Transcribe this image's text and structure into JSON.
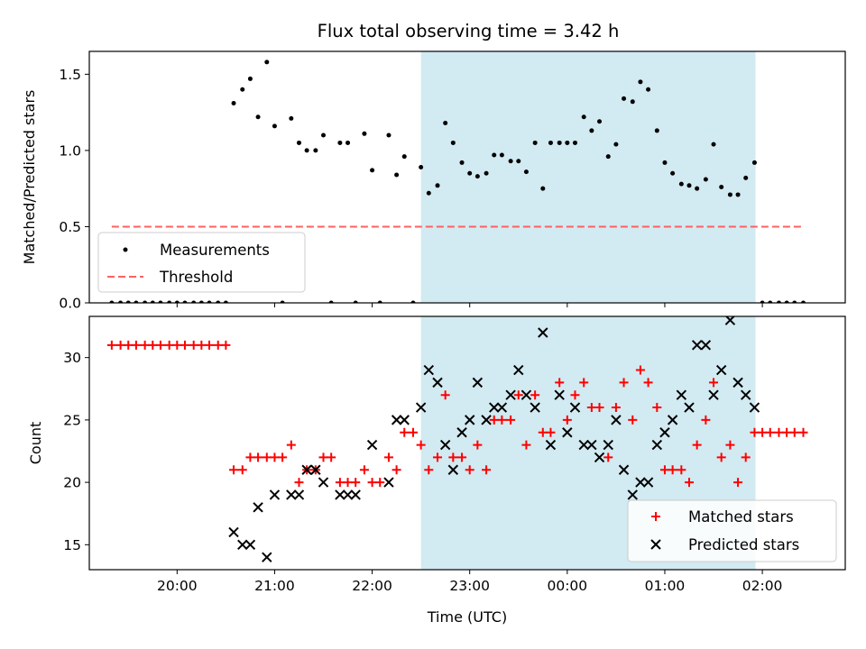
{
  "title": "Flux total observing time = 3.42 h",
  "colors": {
    "shade": "#add8e6",
    "threshold": "#ff6060",
    "measurement": "#000000",
    "matched": "#ff0000",
    "predicted": "#000000"
  },
  "chart_data": [
    {
      "type": "scatter",
      "ylabel": "Matched/Predicted stars",
      "ylim": [
        0,
        1.65
      ],
      "yticks": [
        0.0,
        0.5,
        1.0,
        1.5
      ],
      "ytick_labels": [
        "0.0",
        "0.5",
        "1.0",
        "1.5"
      ],
      "xlim": [
        19.1,
        26.85
      ],
      "shaded_interval": [
        22.5,
        25.93
      ],
      "legend_position": "lower-left",
      "threshold": {
        "name": "Threshold",
        "value": 0.5,
        "x_range": [
          19.33,
          26.43
        ],
        "style": "dashed"
      },
      "series": [
        {
          "name": "Measurements",
          "x": [
            19.33,
            19.42,
            19.5,
            19.58,
            19.67,
            19.75,
            19.83,
            19.92,
            20.0,
            20.08,
            20.17,
            20.25,
            20.33,
            20.42,
            20.5,
            20.58,
            20.67,
            20.75,
            20.83,
            20.92,
            21.0,
            21.08,
            21.17,
            21.25,
            21.33,
            21.42,
            21.5,
            21.58,
            21.67,
            21.75,
            21.83,
            21.92,
            22.0,
            22.08,
            22.17,
            22.25,
            22.33,
            22.42,
            22.5,
            22.58,
            22.67,
            22.75,
            22.83,
            22.92,
            23.0,
            23.08,
            23.17,
            23.25,
            23.33,
            23.42,
            23.5,
            23.58,
            23.67,
            23.75,
            23.83,
            23.92,
            24.0,
            24.08,
            24.17,
            24.25,
            24.33,
            24.42,
            24.5,
            24.58,
            24.67,
            24.75,
            24.83,
            24.92,
            25.0,
            25.08,
            25.17,
            25.25,
            25.33,
            25.42,
            25.5,
            25.58,
            25.67,
            25.75,
            25.83,
            25.92,
            26.0,
            26.08,
            26.17,
            26.25,
            26.33,
            26.42
          ],
          "y": [
            0,
            0,
            0,
            0,
            0,
            0,
            0,
            0,
            0,
            0,
            0,
            0,
            0,
            0,
            0,
            1.31,
            1.4,
            1.47,
            1.22,
            1.58,
            1.16,
            0,
            1.21,
            1.05,
            1.0,
            1.0,
            1.1,
            0,
            1.05,
            1.05,
            0,
            1.11,
            0.87,
            0,
            1.1,
            0.84,
            0.96,
            0,
            0.89,
            0.72,
            0.77,
            1.18,
            1.05,
            0.92,
            0.85,
            0.83,
            0.85,
            0.97,
            0.97,
            0.93,
            0.93,
            0.86,
            1.05,
            0.75,
            1.05,
            1.05,
            1.05,
            1.05,
            1.22,
            1.13,
            1.19,
            0.96,
            1.04,
            1.34,
            1.32,
            1.45,
            1.4,
            1.13,
            0.92,
            0.85,
            0.78,
            0.77,
            0.75,
            0.81,
            1.04,
            0.76,
            0.71,
            0.71,
            0.82,
            0.92,
            0,
            0,
            0,
            0,
            0,
            0
          ]
        }
      ]
    },
    {
      "type": "scatter",
      "xlabel": "Time (UTC)",
      "ylabel": "Count",
      "ylim": [
        13,
        33.3
      ],
      "yticks": [
        15,
        20,
        25,
        30
      ],
      "ytick_labels": [
        "15",
        "20",
        "25",
        "30"
      ],
      "xlim": [
        19.1,
        26.85
      ],
      "xticks": [
        20,
        21,
        22,
        23,
        24,
        25,
        26
      ],
      "xtick_labels": [
        "20:00",
        "21:00",
        "22:00",
        "23:00",
        "00:00",
        "01:00",
        "02:00"
      ],
      "shaded_interval": [
        22.5,
        25.93
      ],
      "legend_position": "lower-right",
      "series": [
        {
          "name": "Matched stars",
          "marker": "plus",
          "x": [
            19.33,
            19.42,
            19.5,
            19.58,
            19.67,
            19.75,
            19.83,
            19.92,
            20.0,
            20.08,
            20.17,
            20.25,
            20.33,
            20.42,
            20.5,
            20.58,
            20.67,
            20.75,
            20.83,
            20.92,
            21.0,
            21.08,
            21.17,
            21.25,
            21.33,
            21.42,
            21.5,
            21.58,
            21.67,
            21.75,
            21.83,
            21.92,
            22.0,
            22.08,
            22.17,
            22.25,
            22.33,
            22.42,
            22.5,
            22.58,
            22.67,
            22.75,
            22.83,
            22.92,
            23.0,
            23.08,
            23.17,
            23.25,
            23.33,
            23.42,
            23.5,
            23.58,
            23.67,
            23.75,
            23.83,
            23.92,
            24.0,
            24.08,
            24.17,
            24.25,
            24.33,
            24.42,
            24.5,
            24.58,
            24.67,
            24.75,
            24.83,
            24.92,
            25.0,
            25.08,
            25.17,
            25.25,
            25.33,
            25.42,
            25.5,
            25.58,
            25.67,
            25.75,
            25.83,
            25.92,
            26.0,
            26.08,
            26.17,
            26.25,
            26.33,
            26.42
          ],
          "y": [
            31,
            31,
            31,
            31,
            31,
            31,
            31,
            31,
            31,
            31,
            31,
            31,
            31,
            31,
            31,
            21,
            21,
            22,
            22,
            22,
            22,
            22,
            23,
            20,
            21,
            21,
            22,
            22,
            20,
            20,
            20,
            21,
            20,
            20,
            22,
            21,
            24,
            24,
            23,
            21,
            22,
            27,
            22,
            22,
            21,
            23,
            21,
            25,
            25,
            25,
            27,
            23,
            27,
            24,
            24,
            28,
            25,
            27,
            28,
            26,
            26,
            22,
            26,
            28,
            25,
            29,
            28,
            26,
            21,
            21,
            21,
            20,
            23,
            25,
            28,
            22,
            23,
            20,
            22,
            24,
            24,
            24,
            24,
            24,
            24,
            24
          ]
        },
        {
          "name": "Predicted stars",
          "marker": "x",
          "x": [
            20.58,
            20.67,
            20.75,
            20.83,
            20.92,
            21.0,
            21.17,
            21.25,
            21.33,
            21.42,
            21.5,
            21.67,
            21.75,
            21.83,
            22.0,
            22.17,
            22.25,
            22.33,
            22.5,
            22.58,
            22.67,
            22.75,
            22.83,
            22.92,
            23.0,
            23.08,
            23.17,
            23.25,
            23.33,
            23.42,
            23.5,
            23.58,
            23.67,
            23.75,
            23.83,
            23.92,
            24.0,
            24.08,
            24.17,
            24.25,
            24.33,
            24.42,
            24.5,
            24.58,
            24.67,
            24.75,
            24.83,
            24.92,
            25.0,
            25.08,
            25.17,
            25.25,
            25.33,
            25.42,
            25.5,
            25.58,
            25.67,
            25.75,
            25.83,
            25.92
          ],
          "y": [
            16,
            15,
            15,
            18,
            14,
            19,
            19,
            19,
            21,
            21,
            20,
            19,
            19,
            19,
            23,
            20,
            25,
            25,
            26,
            29,
            28,
            23,
            21,
            24,
            25,
            28,
            25,
            26,
            26,
            27,
            29,
            27,
            26,
            32,
            23,
            27,
            24,
            26,
            23,
            23,
            22,
            23,
            25,
            21,
            19,
            20,
            20,
            23,
            24,
            25,
            27,
            26,
            31,
            31,
            27,
            29,
            33,
            28,
            27,
            26
          ]
        }
      ]
    }
  ]
}
